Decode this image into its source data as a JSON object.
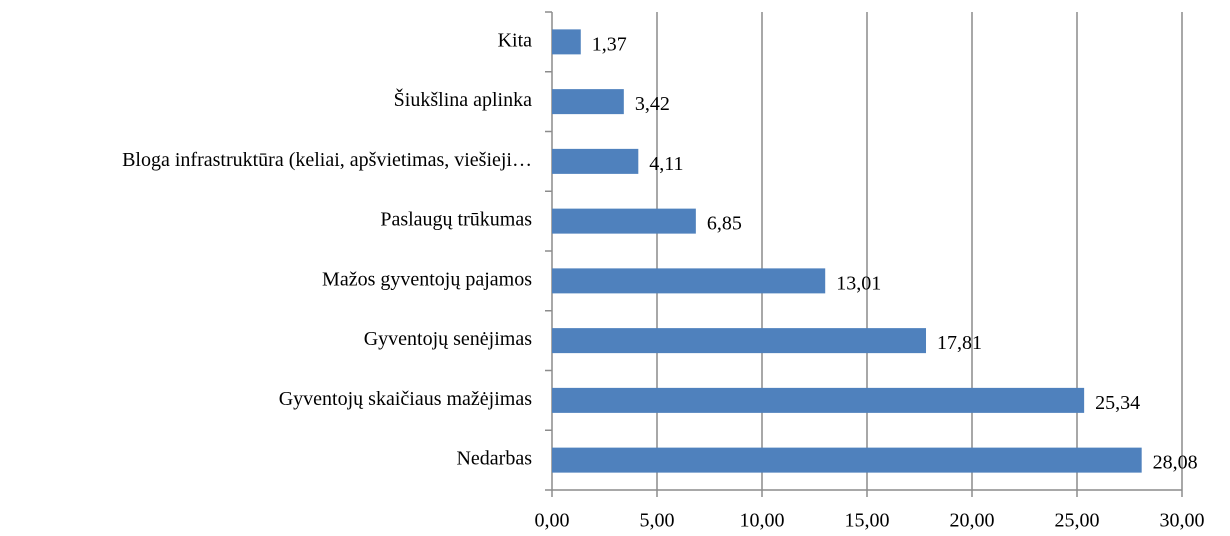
{
  "chart_data": {
    "type": "barh",
    "categories": [
      "Kita",
      "Šiukšlina aplinka",
      "Bloga infrastruktūra (keliai, apšvietimas, viešieji…",
      "Paslaugų trūkumas",
      "Mažos gyventojų pajamos",
      "Gyventojų senėjimas",
      "Gyventojų skaičiaus mažėjimas",
      "Nedarbas"
    ],
    "values": [
      1.37,
      3.42,
      4.11,
      6.85,
      13.01,
      17.81,
      25.34,
      28.08
    ],
    "value_labels": [
      "1,37",
      "3,42",
      "4,11",
      "6,85",
      "13,01",
      "17,81",
      "25,34",
      "28,08"
    ],
    "color": "#4f81bd",
    "xlim": [
      0,
      30
    ],
    "xticks": [
      {
        "value": 0,
        "label": "0,00"
      },
      {
        "value": 5,
        "label": "5,00"
      },
      {
        "value": 10,
        "label": "10,00"
      },
      {
        "value": 15,
        "label": "15,00"
      },
      {
        "value": 20,
        "label": "20,00"
      },
      {
        "value": 25,
        "label": "25,00"
      },
      {
        "value": 30,
        "label": "30,00"
      }
    ],
    "grid": true
  }
}
